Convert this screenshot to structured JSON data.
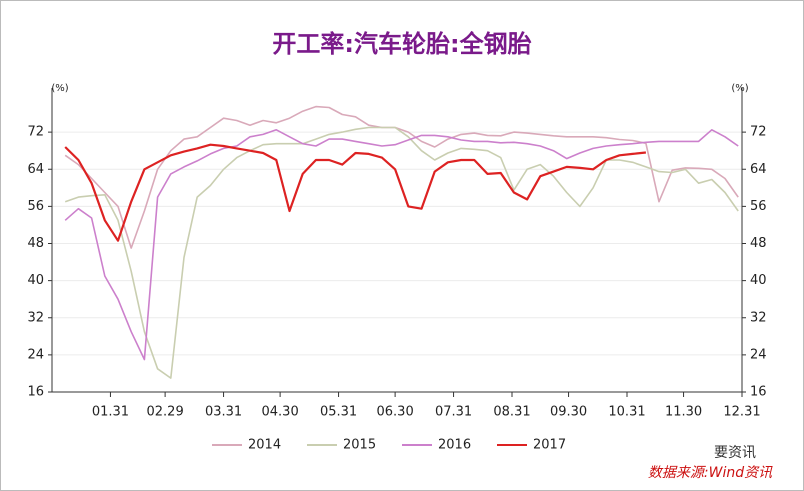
{
  "chart_data": {
    "type": "line",
    "title": "开工率:汽车轮胎:全钢胎",
    "y_label": "(%)",
    "y2_label": "(%)",
    "watermark": "要资讯",
    "source": "数据来源:Wind资讯",
    "x": [
      7,
      14,
      21,
      28,
      35,
      42,
      49,
      56,
      63,
      70,
      77,
      84,
      91,
      98,
      105,
      112,
      119,
      126,
      133,
      140,
      147,
      154,
      161,
      168,
      175,
      182,
      189,
      196,
      203,
      210,
      217,
      224,
      231,
      238,
      245,
      252,
      259,
      266,
      273,
      280,
      287,
      294,
      301,
      308,
      315,
      322,
      329,
      336,
      343,
      350,
      357,
      364
    ],
    "xlim": [
      0,
      366
    ],
    "xticks": [
      {
        "value": 31,
        "label": "01.31"
      },
      {
        "value": 60,
        "label": "02.29"
      },
      {
        "value": 91,
        "label": "03.31"
      },
      {
        "value": 121,
        "label": "04.30"
      },
      {
        "value": 152,
        "label": "05.31"
      },
      {
        "value": 182,
        "label": "06.30"
      },
      {
        "value": 213,
        "label": "07.31"
      },
      {
        "value": 244,
        "label": "08.31"
      },
      {
        "value": 274,
        "label": "09.30"
      },
      {
        "value": 305,
        "label": "10.31"
      },
      {
        "value": 335,
        "label": "11.30"
      },
      {
        "value": 366,
        "label": "12.31"
      }
    ],
    "ylim": [
      16,
      80
    ],
    "yticks": [
      16,
      24,
      32,
      40,
      48,
      56,
      64,
      72
    ],
    "y2lim": [
      16,
      80
    ],
    "y2ticks": [
      16,
      24,
      32,
      40,
      48,
      56,
      64,
      72
    ],
    "grid": true,
    "legend": "bottom",
    "series": [
      {
        "name": "2014",
        "color": "#d9a9b9",
        "values": [
          67,
          65,
          62,
          59,
          56,
          47,
          55,
          64,
          68,
          70.5,
          71,
          73,
          75,
          74.5,
          73.5,
          74.5,
          74,
          75,
          76.5,
          77.5,
          77.3,
          75.8,
          75.3,
          73.5,
          73,
          73,
          72,
          70,
          68.8,
          70.5,
          71.5,
          71.8,
          71.3,
          71.2,
          72,
          71.8,
          71.5,
          71.2,
          71,
          71,
          71,
          70.8,
          70.4,
          70.2,
          69.6,
          57,
          63.8,
          64.3,
          64.2,
          64,
          62,
          58
        ]
      },
      {
        "name": "2015",
        "color": "#c9ceb0",
        "values": [
          57,
          58,
          58.3,
          58.5,
          53,
          42,
          29,
          21,
          19,
          45,
          58,
          60.5,
          64,
          66.5,
          68,
          69.3,
          69.5,
          69.5,
          69.5,
          70.5,
          71.5,
          72,
          72.6,
          73,
          73,
          73,
          71,
          68,
          66,
          67.5,
          68.5,
          68.3,
          68,
          66.5,
          59.5,
          64,
          65,
          62.5,
          59,
          56,
          60,
          66,
          66,
          65.5,
          64.5,
          63.5,
          63.3,
          64,
          61,
          61.8,
          59,
          55
        ]
      },
      {
        "name": "2016",
        "color": "#cc80cc",
        "values": [
          53,
          55.5,
          53.5,
          41,
          36,
          29,
          23,
          58,
          63,
          64.5,
          65.8,
          67.3,
          68.5,
          69,
          71,
          71.5,
          72.5,
          71,
          69.5,
          69,
          70.5,
          70.5,
          70,
          69.5,
          69,
          69.3,
          70.3,
          71.3,
          71.3,
          71,
          70.3,
          70,
          70,
          69.7,
          69.8,
          69.5,
          69,
          68,
          66.3,
          67.5,
          68.5,
          69,
          69.3,
          69.5,
          69.8,
          70,
          70,
          70,
          70,
          72.5,
          71,
          69
        ]
      },
      {
        "name": "2017",
        "color": "#dd2222",
        "values": [
          68.8,
          66,
          61,
          53,
          48.6,
          57,
          64,
          65.5,
          67,
          67.8,
          68.5,
          69.3,
          69,
          68.5,
          68,
          67.5,
          66,
          55,
          63,
          66,
          66,
          65,
          67.5,
          67.3,
          66.5,
          64,
          56,
          55.5,
          63.5,
          65.5,
          66,
          66,
          63,
          63.2,
          59,
          57.5,
          62.5,
          63.5,
          64.5,
          64.3,
          64,
          66,
          67,
          67.3,
          67.6,
          null,
          null,
          null,
          null,
          null,
          null,
          null
        ]
      }
    ]
  }
}
